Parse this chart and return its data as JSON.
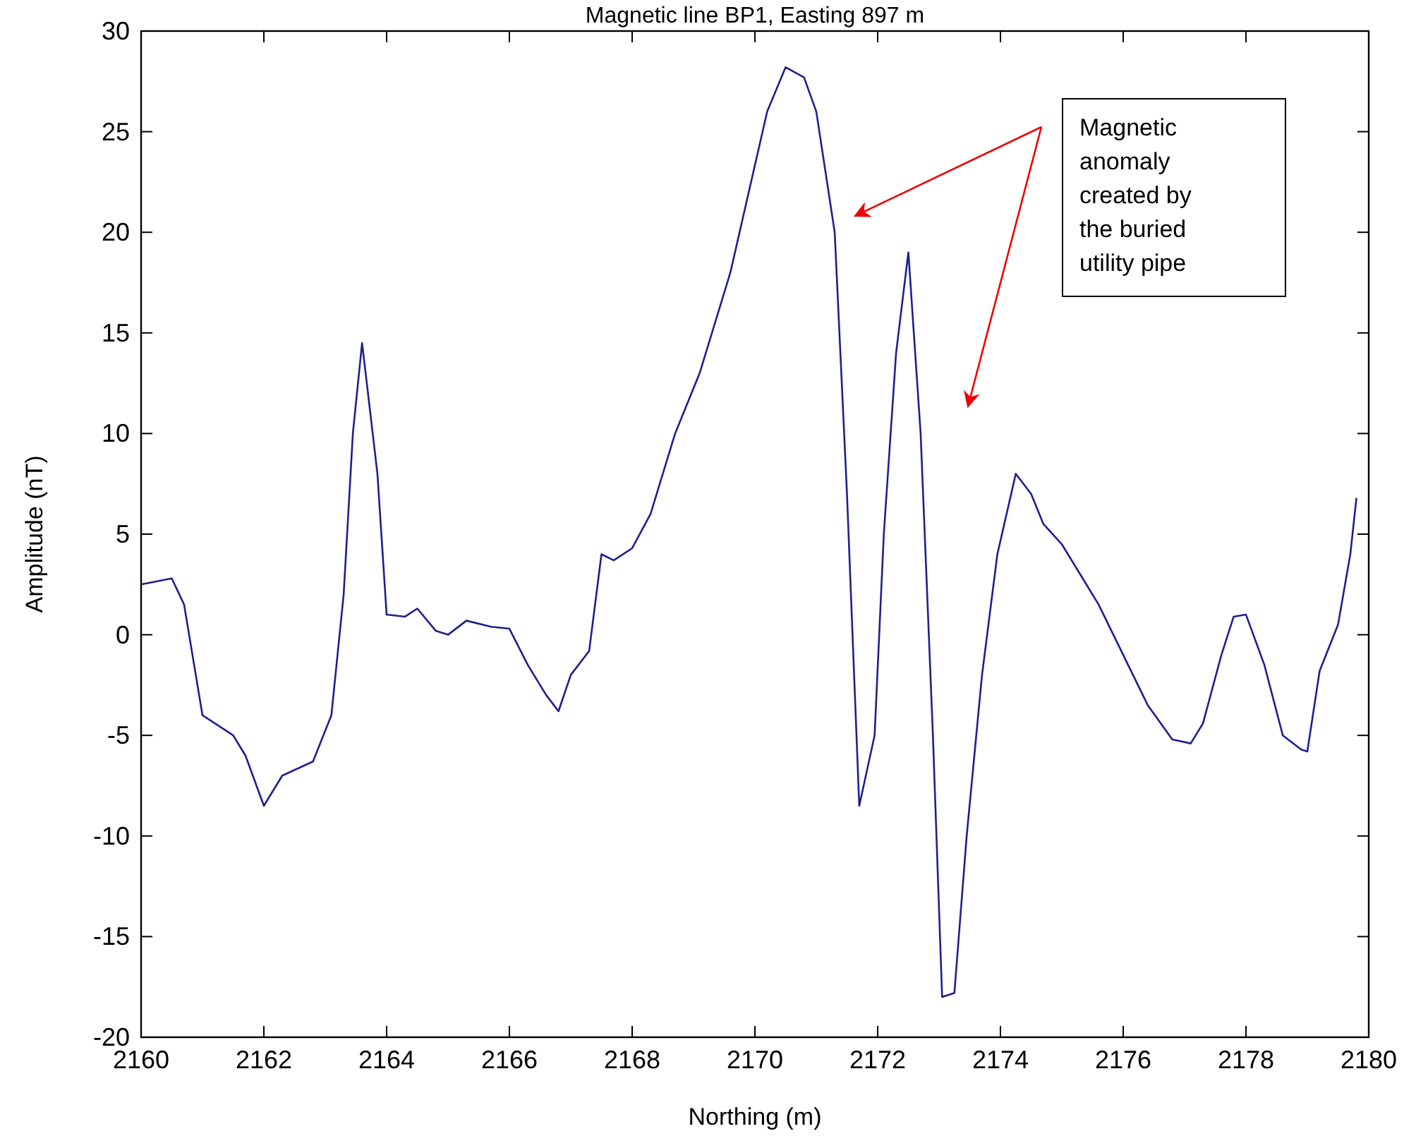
{
  "chart_data": {
    "type": "line",
    "title": "Magnetic line BP1, Easting 897 m",
    "xlabel": "Northing (m)",
    "ylabel": "Amplitude (nT)",
    "annotations": [
      "Magnetic\nanomaly\ncreated by\nthe buried\nutility pipe"
    ],
    "xlim": [
      2160,
      2180
    ],
    "xticks": [
      2160,
      2162,
      2164,
      2166,
      2168,
      2170,
      2172,
      2174,
      2176,
      2178,
      2180
    ],
    "ylim": [
      -20,
      30
    ],
    "yticks": [
      -20,
      -15,
      -10,
      -5,
      0,
      5,
      10,
      15,
      20,
      25,
      30
    ],
    "grid": false,
    "series": [
      {
        "color": "#1f1f8f",
        "x": [
          2160,
          2160.5,
          2160.7,
          2161,
          2161.5,
          2161.7,
          2162,
          2162.3,
          2162.8,
          2163.1,
          2163.3,
          2163.45,
          2163.6,
          2163.85,
          2164,
          2164.3,
          2164.5,
          2164.8,
          2165,
          2165.3,
          2165.7,
          2166,
          2166.3,
          2166.6,
          2166.8,
          2167,
          2167.3,
          2167.5,
          2167.7,
          2168,
          2168.3,
          2168.7,
          2169.1,
          2169.6,
          2169.9,
          2170.2,
          2170.5,
          2170.8,
          2171,
          2171.3,
          2171.5,
          2171.7,
          2171.95,
          2172.1,
          2172.3,
          2172.5,
          2172.7,
          2172.9,
          2173.05,
          2173.25,
          2173.45,
          2173.7,
          2173.95,
          2174.25,
          2174.5,
          2174.7,
          2175,
          2175.3,
          2175.6,
          2176,
          2176.4,
          2176.8,
          2177.1,
          2177.3,
          2177.6,
          2177.8,
          2178,
          2178.3,
          2178.6,
          2178.9,
          2179,
          2179.2,
          2179.5,
          2179.7,
          2179.8
        ],
        "values": [
          2.5,
          2.8,
          1.5,
          -4,
          -5,
          -6,
          -8.5,
          -7,
          -6.3,
          -4,
          2,
          10,
          14.5,
          8,
          1,
          0.9,
          1.3,
          0.2,
          0,
          0.7,
          0.4,
          0.3,
          -1.5,
          -3,
          -3.8,
          -2,
          -0.8,
          4,
          3.7,
          4.3,
          6,
          10,
          13,
          18,
          22,
          26,
          28.2,
          27.7,
          26,
          20,
          7,
          -8.5,
          -5,
          5,
          14,
          19,
          10,
          -5,
          -18,
          -17.8,
          -10,
          -2,
          4,
          8,
          7,
          5.5,
          4.5,
          3,
          1.5,
          -1,
          -3.5,
          -5.2,
          -5.4,
          -4.4,
          -1,
          0.9,
          1,
          -1.5,
          -5,
          -5.7,
          -5.8,
          -1.8,
          0.5,
          4,
          6.8
        ]
      }
    ]
  }
}
